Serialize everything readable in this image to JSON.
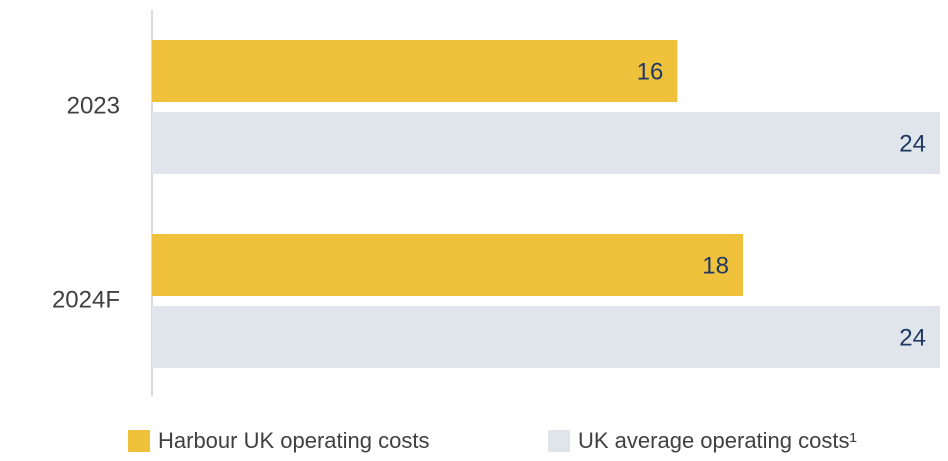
{
  "chart_data": {
    "type": "bar",
    "orientation": "horizontal",
    "categories": [
      "2023",
      "2024F"
    ],
    "series": [
      {
        "name": "Harbour UK operating costs",
        "color": "#f0c23c",
        "values": [
          16,
          18
        ]
      },
      {
        "name": "UK average operating costs¹",
        "color": "#dfe5ea",
        "values": [
          24,
          24
        ]
      }
    ],
    "xlim": [
      0,
      24
    ]
  }
}
